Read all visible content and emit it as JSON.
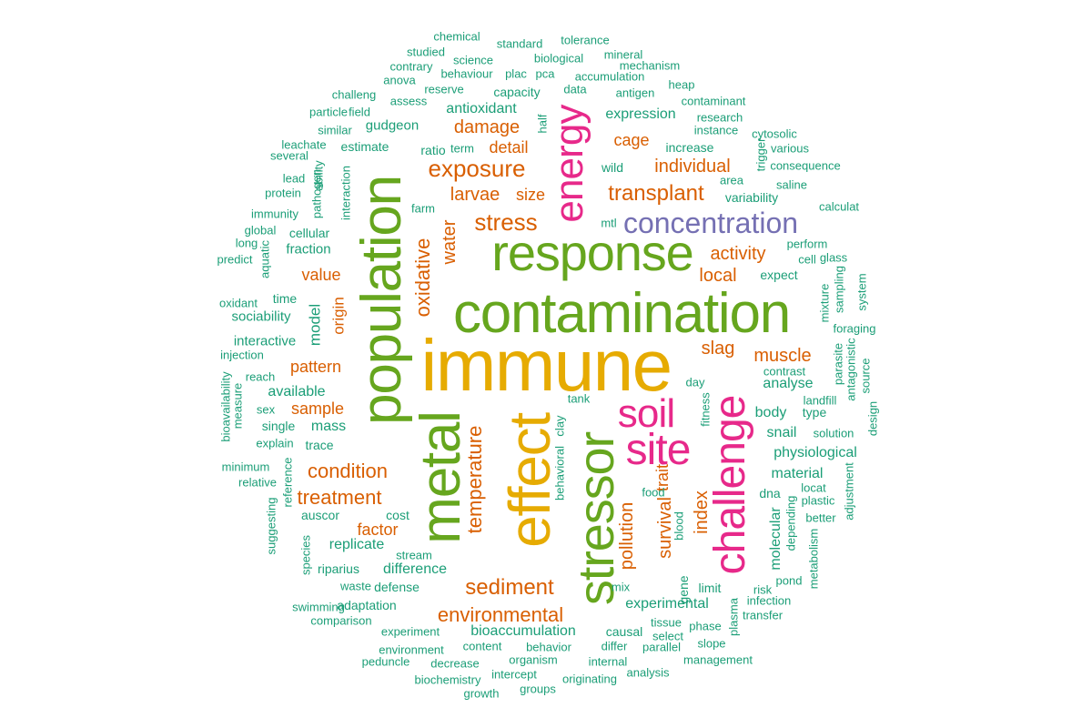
{
  "palette": {
    "gold": "#e6ab02",
    "olive_green": "#66a61e",
    "magenta": "#e7298a",
    "purple": "#7570b3",
    "orange": "#d95f02",
    "teal": "#1b9e77"
  },
  "words": [
    {
      "text": "immune"
    },
    {
      "text": "contamination"
    },
    {
      "text": "effect"
    },
    {
      "text": "population"
    },
    {
      "text": "response"
    },
    {
      "text": "metal"
    },
    {
      "text": "stressor"
    },
    {
      "text": "challenge"
    },
    {
      "text": "site"
    },
    {
      "text": "soil"
    },
    {
      "text": "energy"
    },
    {
      "text": "concentration"
    },
    {
      "text": "exposure"
    },
    {
      "text": "stress"
    },
    {
      "text": "transplant"
    },
    {
      "text": "sediment"
    },
    {
      "text": "oxidative"
    },
    {
      "text": "temperature"
    },
    {
      "text": "environmental"
    },
    {
      "text": "condition"
    },
    {
      "text": "treatment"
    },
    {
      "text": "larvae"
    },
    {
      "text": "individual"
    },
    {
      "text": "damage"
    },
    {
      "text": "pollution"
    },
    {
      "text": "survival"
    },
    {
      "text": "index"
    },
    {
      "text": "local"
    },
    {
      "text": "activity"
    },
    {
      "text": "slag"
    },
    {
      "text": "muscle"
    },
    {
      "text": "water"
    },
    {
      "text": "detail"
    },
    {
      "text": "cage"
    },
    {
      "text": "size"
    },
    {
      "text": "value"
    },
    {
      "text": "pattern"
    },
    {
      "text": "sample"
    },
    {
      "text": "factor"
    },
    {
      "text": "trait"
    },
    {
      "text": "origin"
    },
    {
      "text": "model"
    },
    {
      "text": "replicate"
    },
    {
      "text": "difference"
    },
    {
      "text": "bioaccumulation"
    },
    {
      "text": "experimental"
    },
    {
      "text": "physiological"
    },
    {
      "text": "antioxidant"
    },
    {
      "text": "expression"
    },
    {
      "text": "available"
    },
    {
      "text": "mass"
    },
    {
      "text": "body"
    },
    {
      "text": "analyse"
    },
    {
      "text": "snail"
    },
    {
      "text": "material"
    },
    {
      "text": "molecular"
    },
    {
      "text": "gudgeon"
    },
    {
      "text": "fraction"
    },
    {
      "text": "sociability"
    },
    {
      "text": "interactive"
    },
    {
      "text": "capacity"
    },
    {
      "text": "variability"
    },
    {
      "text": "increase"
    },
    {
      "text": "wild"
    },
    {
      "text": "estimate"
    },
    {
      "text": "cellular"
    },
    {
      "text": "time"
    },
    {
      "text": "single"
    },
    {
      "text": "trace"
    },
    {
      "text": "auscor"
    },
    {
      "text": "cost"
    },
    {
      "text": "riparius"
    },
    {
      "text": "defense"
    },
    {
      "text": "adaptation"
    },
    {
      "text": "causal"
    },
    {
      "text": "type"
    },
    {
      "text": "dna"
    },
    {
      "text": "expect"
    },
    {
      "text": "gene"
    },
    {
      "text": "limit"
    },
    {
      "text": "ratio"
    },
    {
      "text": "chemical"
    },
    {
      "text": "standard"
    },
    {
      "text": "tolerance"
    },
    {
      "text": "studied"
    },
    {
      "text": "science"
    },
    {
      "text": "biological"
    },
    {
      "text": "mineral"
    },
    {
      "text": "contrary"
    },
    {
      "text": "behaviour"
    },
    {
      "text": "plac"
    },
    {
      "text": "pca"
    },
    {
      "text": "mechanism"
    },
    {
      "text": "anova"
    },
    {
      "text": "data"
    },
    {
      "text": "accumulation"
    },
    {
      "text": "challeng"
    },
    {
      "text": "assess"
    },
    {
      "text": "reserve"
    },
    {
      "text": "antigen"
    },
    {
      "text": "heap"
    },
    {
      "text": "contaminant"
    },
    {
      "text": "particle"
    },
    {
      "text": "field"
    },
    {
      "text": "half"
    },
    {
      "text": "research"
    },
    {
      "text": "similar"
    },
    {
      "text": "instance"
    },
    {
      "text": "cytosolic"
    },
    {
      "text": "leachate"
    },
    {
      "text": "term"
    },
    {
      "text": "various"
    },
    {
      "text": "several"
    },
    {
      "text": "trigger"
    },
    {
      "text": "consequence"
    },
    {
      "text": "lead"
    },
    {
      "text": "ability"
    },
    {
      "text": "area"
    },
    {
      "text": "saline"
    },
    {
      "text": "protein"
    },
    {
      "text": "pathogen"
    },
    {
      "text": "interaction"
    },
    {
      "text": "farm"
    },
    {
      "text": "calculat"
    },
    {
      "text": "immunity"
    },
    {
      "text": "global"
    },
    {
      "text": "mtl"
    },
    {
      "text": "long"
    },
    {
      "text": "perform"
    },
    {
      "text": "predict"
    },
    {
      "text": "aquatic"
    },
    {
      "text": "cell"
    },
    {
      "text": "glass"
    },
    {
      "text": "system"
    },
    {
      "text": "sampling"
    },
    {
      "text": "mixture"
    },
    {
      "text": "oxidant"
    },
    {
      "text": "foraging"
    },
    {
      "text": "injection"
    },
    {
      "text": "parasite"
    },
    {
      "text": "antagonistic"
    },
    {
      "text": "contrast"
    },
    {
      "text": "reach"
    },
    {
      "text": "day"
    },
    {
      "text": "source"
    },
    {
      "text": "bioavailability"
    },
    {
      "text": "measure"
    },
    {
      "text": "tank"
    },
    {
      "text": "landfill"
    },
    {
      "text": "sex"
    },
    {
      "text": "fitness"
    },
    {
      "text": "solution"
    },
    {
      "text": "design"
    },
    {
      "text": "explain"
    },
    {
      "text": "clay"
    },
    {
      "text": "minimum"
    },
    {
      "text": "reference"
    },
    {
      "text": "behavioral"
    },
    {
      "text": "relative"
    },
    {
      "text": "locat"
    },
    {
      "text": "adjustment"
    },
    {
      "text": "food"
    },
    {
      "text": "plastic"
    },
    {
      "text": "suggesting"
    },
    {
      "text": "depending"
    },
    {
      "text": "better"
    },
    {
      "text": "blood"
    },
    {
      "text": "species"
    },
    {
      "text": "stream"
    },
    {
      "text": "metabolism"
    },
    {
      "text": "waste"
    },
    {
      "text": "pond"
    },
    {
      "text": "mix"
    },
    {
      "text": "risk"
    },
    {
      "text": "infection"
    },
    {
      "text": "swimming"
    },
    {
      "text": "transfer"
    },
    {
      "text": "comparison"
    },
    {
      "text": "tissue"
    },
    {
      "text": "phase"
    },
    {
      "text": "plasma"
    },
    {
      "text": "experiment"
    },
    {
      "text": "select"
    },
    {
      "text": "content"
    },
    {
      "text": "behavior"
    },
    {
      "text": "differ"
    },
    {
      "text": "environment"
    },
    {
      "text": "parallel"
    },
    {
      "text": "slope"
    },
    {
      "text": "decrease"
    },
    {
      "text": "organism"
    },
    {
      "text": "internal"
    },
    {
      "text": "management"
    },
    {
      "text": "peduncle"
    },
    {
      "text": "intercept"
    },
    {
      "text": "analysis"
    },
    {
      "text": "biochemistry"
    },
    {
      "text": "originating"
    },
    {
      "text": "growth"
    },
    {
      "text": "groups"
    }
  ]
}
